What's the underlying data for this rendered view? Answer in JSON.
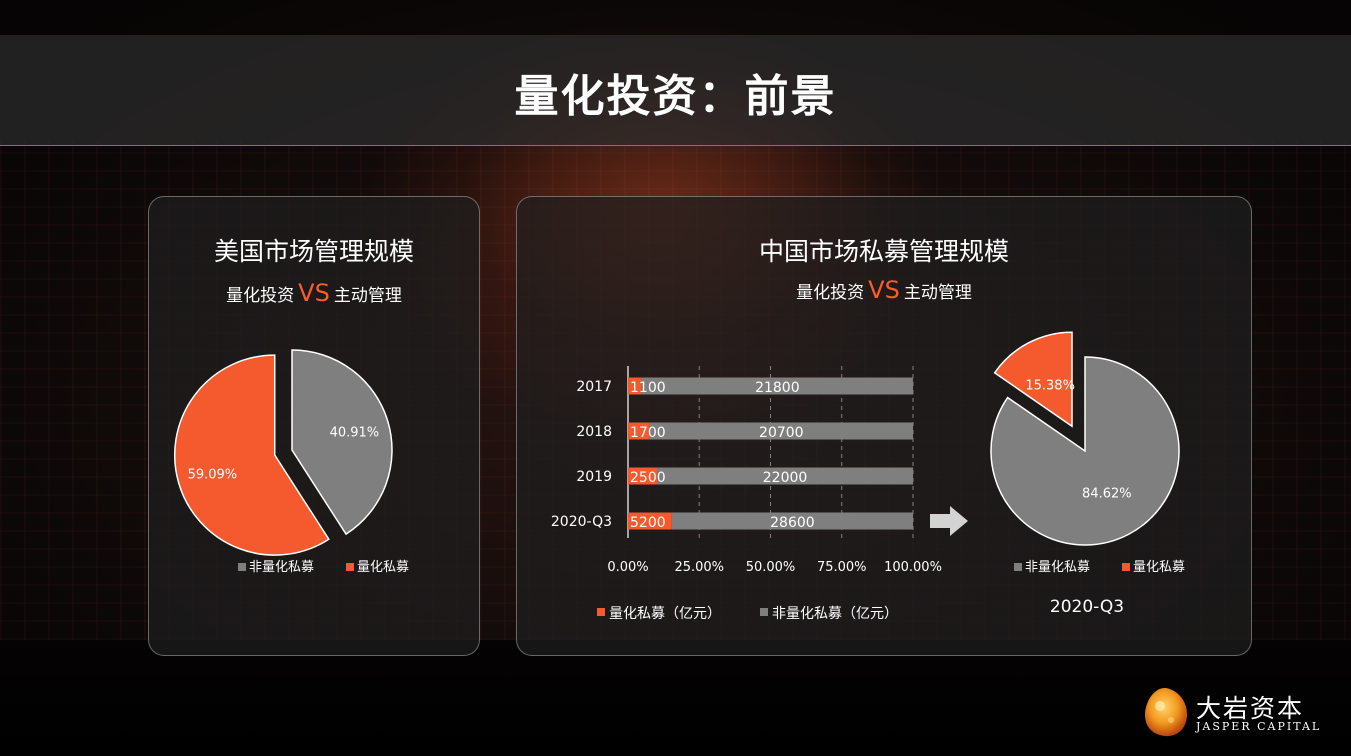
{
  "header": {
    "title": "量化投资：前景"
  },
  "left_panel": {
    "title": "美国市场管理规模",
    "subtitle_left": "量化投资",
    "subtitle_vs": "VS",
    "subtitle_right": "主动管理"
  },
  "right_panel": {
    "title": "中国市场私募管理规模",
    "subtitle_left": "量化投资",
    "subtitle_vs": "VS",
    "subtitle_right": "主动管理"
  },
  "colors": {
    "quant": "#f45a2e",
    "non_quant": "#7f7f7f",
    "accent": "#ff5a2a"
  },
  "chart_data": [
    {
      "type": "pie",
      "labels": [
        "非量化私募",
        "量化私募"
      ],
      "values": [
        40.91,
        59.09
      ],
      "data_labels": [
        "40.91%",
        "59.09%"
      ],
      "exploded": "量化私募",
      "legend": [
        "非量化私募",
        "量化私募"
      ],
      "legend_position": "bottom"
    },
    {
      "type": "bar",
      "orientation": "horizontal",
      "stacked_percent": true,
      "categories": [
        "2017",
        "2018",
        "2019",
        "2020-Q3"
      ],
      "series": [
        {
          "name": "量化私募（亿元）",
          "values": [
            1100,
            1700,
            2500,
            5200
          ]
        },
        {
          "name": "非量化私募（亿元）",
          "values": [
            21800,
            20700,
            22000,
            28600
          ]
        }
      ],
      "x_ticks": [
        "0.00%",
        "25.00%",
        "50.00%",
        "75.00%",
        "100.00%"
      ],
      "xlim": [
        0,
        100
      ],
      "grid": true,
      "legend_position": "bottom"
    },
    {
      "type": "pie",
      "labels": [
        "非量化私募",
        "量化私募"
      ],
      "values": [
        84.62,
        15.38
      ],
      "data_labels": [
        "84.62%",
        "15.38%"
      ],
      "exploded": "量化私募",
      "legend": [
        "非量化私募",
        "量化私募"
      ],
      "legend_position": "bottom",
      "caption": "2020-Q3"
    }
  ],
  "logo": {
    "name_cn": "大岩资本",
    "name_en": "JASPER CAPITAL"
  }
}
